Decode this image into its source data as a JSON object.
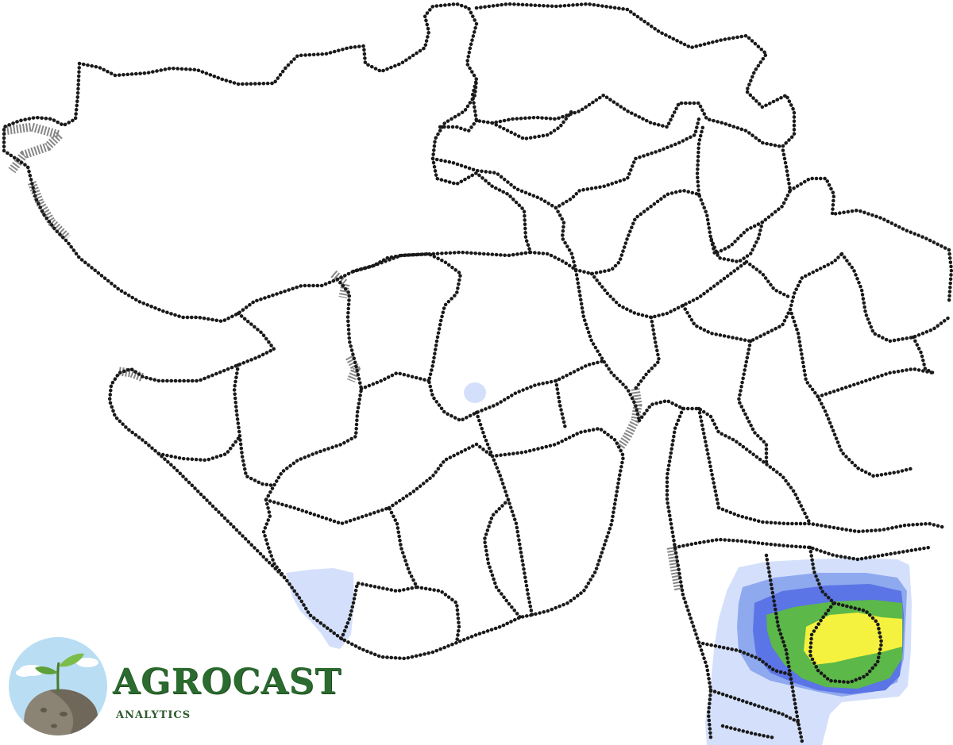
{
  "brand": {
    "name": "AGROCAST",
    "subtitle": "ANALYTICS",
    "icon": "sprout-on-rock-logo-icon"
  },
  "map": {
    "background": "#ffffff",
    "border_color": "#1a1a1a",
    "rain_colors": {
      "very_light": "#d4e0fb",
      "light": "#8fa9ef",
      "moderate": "#5b74e6",
      "heavy": "#5cb849",
      "very_heavy": "#f5f23f"
    }
  }
}
